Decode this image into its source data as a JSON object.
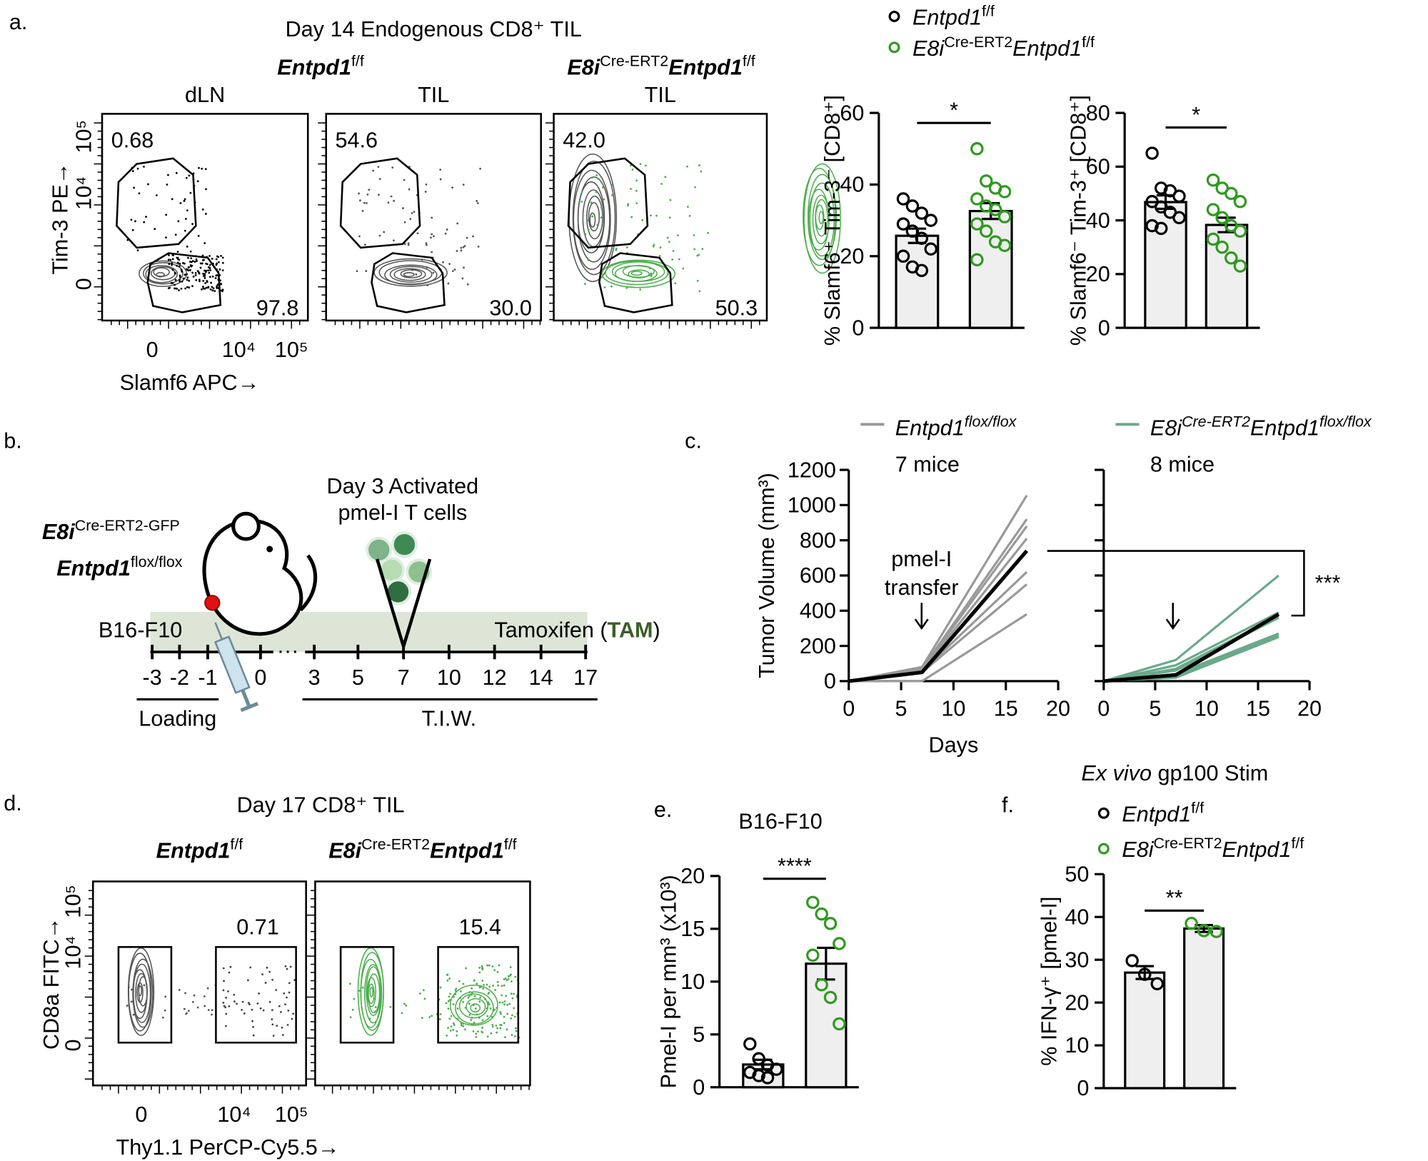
{
  "panel_labels": [
    "a.",
    "b.",
    "c.",
    "d.",
    "e.",
    "f."
  ],
  "flow_a": {
    "title": "Day 14 Endogenous CD8⁺ TIL",
    "groups": [
      [
        {
          "text": "Entpd1",
          "style": "bold italic"
        },
        {
          "text": "f/f",
          "style": "sup"
        }
      ],
      [
        {
          "text": "E8i",
          "style": "bold italic"
        },
        {
          "text": "Cre-ERT2",
          "style": "sup"
        },
        {
          "text": "Entpd1",
          "style": "bold italic"
        },
        {
          "text": "f/f",
          "style": "sup"
        }
      ]
    ],
    "plots": [
      {
        "label": "dLN",
        "upper": "0.68",
        "lower": "97.8"
      },
      {
        "label": "TIL",
        "upper": "54.6",
        "lower": "30.0"
      },
      {
        "label": "TIL",
        "upper": "42.0",
        "lower": "50.3"
      }
    ],
    "y_label": "Tim-3 PE→",
    "x_label": "Slamf6 APC→",
    "y_ticks": [
      "0",
      "10⁴",
      "10⁵"
    ],
    "x_ticks": [
      "0",
      "10⁴",
      "10⁵"
    ]
  },
  "schematic_b": {
    "mouse_label": [
      {
        "text": "E8i",
        "style": "bold italic"
      },
      {
        "text": "Cre-ERT2-GFP",
        "style": "sup"
      }
    ],
    "mouse_label_2": [
      {
        "text": "Entpd1",
        "style": "bold italic"
      },
      {
        "text": "flox/flox",
        "style": "sup"
      }
    ],
    "cells_label": [
      "Day 3 Activated",
      "pmel-I T cells"
    ],
    "tumor": "B16-F10",
    "treatment": [
      {
        "text": "Tamoxifen ("
      },
      {
        "text": "TAM",
        "style": "bold",
        "color": "#3d5e2a"
      },
      {
        "text": ")"
      }
    ],
    "days": [
      "-3",
      "-2",
      "-1",
      "0",
      "3",
      "5",
      "7",
      "10",
      "12",
      "14",
      "17"
    ],
    "phases": [
      "Loading",
      "T.I.W."
    ]
  },
  "flow_d": {
    "title": "Day 17 CD8⁺ TIL",
    "plots": [
      {
        "header": [
          {
            "text": "Entpd1",
            "style": "bold italic"
          },
          {
            "text": "f/f",
            "style": "sup"
          }
        ],
        "value": "0.71"
      },
      {
        "header": [
          {
            "text": "E8i",
            "style": "bold italic"
          },
          {
            "text": "Cre-ERT2",
            "style": "sup"
          },
          {
            "text": "Entpd1",
            "style": "bold italic"
          },
          {
            "text": "f/f",
            "style": "sup"
          }
        ],
        "value": "15.4"
      }
    ],
    "y_label": "CD8a FITC→",
    "x_label": "Thy1.1 PerCP-Cy5.5→",
    "y_ticks": [
      "0",
      "10⁴",
      "10⁵"
    ],
    "x_ticks": [
      "0",
      "10⁴",
      "10⁵"
    ]
  },
  "chart_data": [
    {
      "type": "bar",
      "y_label": "% Slamf6⁺ Tim-3⁻ [CD8⁺]",
      "ylim": [
        0,
        60
      ],
      "yticks": [
        0,
        20,
        40,
        60
      ],
      "annotation": "*",
      "series": [
        {
          "name": [
            {
              "text": "Entpd1",
              "style": "italic"
            },
            {
              "text": "f/f",
              "style": "sup"
            }
          ],
          "color": "#000000",
          "values": [
            25.7
          ],
          "errors": [
            2.0
          ],
          "points": [
            36,
            34,
            32,
            30,
            29,
            27,
            25,
            22,
            20,
            17,
            16
          ]
        },
        {
          "name": [
            {
              "text": "E8i",
              "style": "italic"
            },
            {
              "text": "Cre-ERT2",
              "style": "sup"
            },
            {
              "text": "Entpd1",
              "style": "italic"
            },
            {
              "text": "f/f",
              "style": "sup"
            }
          ],
          "color": "#2e9a1e",
          "values": [
            32.6
          ],
          "errors": [
            2.2
          ],
          "points": [
            50,
            41,
            39,
            38,
            36,
            34,
            33,
            31,
            29,
            27,
            24,
            23,
            19
          ]
        }
      ]
    },
    {
      "type": "bar",
      "y_label": "% Slamf6⁻ Tim-3⁺ [CD8⁺]",
      "ylim": [
        0,
        80
      ],
      "yticks": [
        0,
        20,
        40,
        60,
        80
      ],
      "annotation": "*",
      "series": [
        {
          "color": "#000000",
          "values": [
            46.8
          ],
          "errors": [
            2.5
          ],
          "points": [
            65,
            52,
            51,
            49,
            47,
            45,
            43,
            41,
            38,
            37
          ]
        },
        {
          "color": "#2e9a1e",
          "values": [
            38.3
          ],
          "errors": [
            2.7
          ],
          "points": [
            55,
            52,
            50,
            47,
            44,
            41,
            38,
            36,
            33,
            30,
            26,
            23
          ]
        }
      ]
    },
    {
      "type": "line",
      "y_label": "Tumor Volume (mm³)",
      "x_label": "Days",
      "x": [
        0,
        7,
        17
      ],
      "xlim": [
        0,
        20
      ],
      "xticks": [
        0,
        5,
        10,
        15,
        20
      ],
      "ylim": [
        0,
        1200
      ],
      "yticks": [
        0,
        200,
        400,
        600,
        800,
        1000,
        1200
      ],
      "transfer_label": [
        "pmel-I",
        "transfer"
      ],
      "annotation": "***",
      "subplots": [
        {
          "name": [
            {
              "text": "Entpd1",
              "style": "italic"
            },
            {
              "text": "flox/flox",
              "style": "italic sup"
            }
          ],
          "n_label": "7 mice",
          "color": "#999999",
          "series": [
            {
              "color": "#999999",
              "values": [
                0,
                80,
                1055
              ]
            },
            {
              "color": "#999999",
              "values": [
                0,
                70,
                920
              ]
            },
            {
              "color": "#999999",
              "values": [
                0,
                65,
                880
              ]
            },
            {
              "color": "#999999",
              "values": [
                0,
                60,
                810
              ]
            },
            {
              "color": "#999999",
              "values": [
                0,
                55,
                620
              ]
            },
            {
              "color": "#999999",
              "values": [
                0,
                50,
                550
              ]
            },
            {
              "color": "#999999",
              "values": [
                0,
                0,
                380
              ]
            },
            {
              "color": "#000000",
              "values": [
                0,
                50,
                740
              ]
            }
          ]
        },
        {
          "name": [
            {
              "text": "E8i",
              "style": "italic"
            },
            {
              "text": "Cre-ERT2",
              "style": "italic sup"
            },
            {
              "text": "Entpd1",
              "style": "italic"
            },
            {
              "text": "flox/flox",
              "style": "italic sup"
            }
          ],
          "n_label": "8 mice",
          "color": "#6aaa8a",
          "series": [
            {
              "color": "#6aaa8a",
              "values": [
                0,
                120,
                600
              ]
            },
            {
              "color": "#6aaa8a",
              "values": [
                0,
                90,
                390
              ]
            },
            {
              "color": "#6aaa8a",
              "values": [
                0,
                70,
                370
              ]
            },
            {
              "color": "#6aaa8a",
              "values": [
                0,
                60,
                360
              ]
            },
            {
              "color": "#6aaa8a",
              "values": [
                0,
                40,
                270
              ]
            },
            {
              "color": "#6aaa8a",
              "values": [
                0,
                30,
                260
              ]
            },
            {
              "color": "#6aaa8a",
              "values": [
                0,
                20,
                255
              ]
            },
            {
              "color": "#6aaa8a",
              "values": [
                0,
                20,
                250
              ]
            },
            {
              "color": "#000000",
              "values": [
                0,
                35,
                380
              ]
            }
          ]
        }
      ]
    },
    {
      "type": "bar",
      "title": "B16-F10",
      "y_label": "Pmel-I per mm³ (x10³)",
      "ylim": [
        0,
        20
      ],
      "yticks": [
        0,
        5,
        10,
        15,
        20
      ],
      "annotation": "****",
      "series": [
        {
          "color": "#000000",
          "values": [
            2.15
          ],
          "errors": [
            0.45
          ],
          "points": [
            4.1,
            2.7,
            2.1,
            1.7,
            1.4,
            1.1,
            0.9
          ]
        },
        {
          "color": "#2e9a1e",
          "values": [
            11.7
          ],
          "errors": [
            1.5
          ],
          "points": [
            17.5,
            16.4,
            15.5,
            13.6,
            12.5,
            9.7,
            8.5,
            6.0
          ]
        }
      ]
    },
    {
      "type": "bar",
      "title": [
        {
          "text": "Ex vivo",
          "style": "italic"
        },
        {
          "text": " gp100 Stim"
        }
      ],
      "y_label": "% IFN-γ⁺ [pmel-I]",
      "ylim": [
        0,
        50
      ],
      "yticks": [
        0,
        10,
        20,
        30,
        40,
        50
      ],
      "annotation": "**",
      "series": [
        {
          "name": [
            {
              "text": "Entpd1",
              "style": "italic"
            },
            {
              "text": "f/f",
              "style": "sup"
            }
          ],
          "color": "#000000",
          "values": [
            27
          ],
          "errors": [
            1.5
          ],
          "points": [
            29.8,
            26.6,
            24.4
          ]
        },
        {
          "name": [
            {
              "text": "E8i",
              "style": "italic"
            },
            {
              "text": "Cre-ERT2",
              "style": "sup"
            },
            {
              "text": "Entpd1",
              "style": "italic"
            },
            {
              "text": "f/f",
              "style": "sup"
            }
          ],
          "color": "#2e9a1e",
          "values": [
            37.3
          ],
          "errors": [
            0.8
          ],
          "points": [
            38.5,
            36.8,
            36.6
          ]
        }
      ]
    }
  ]
}
